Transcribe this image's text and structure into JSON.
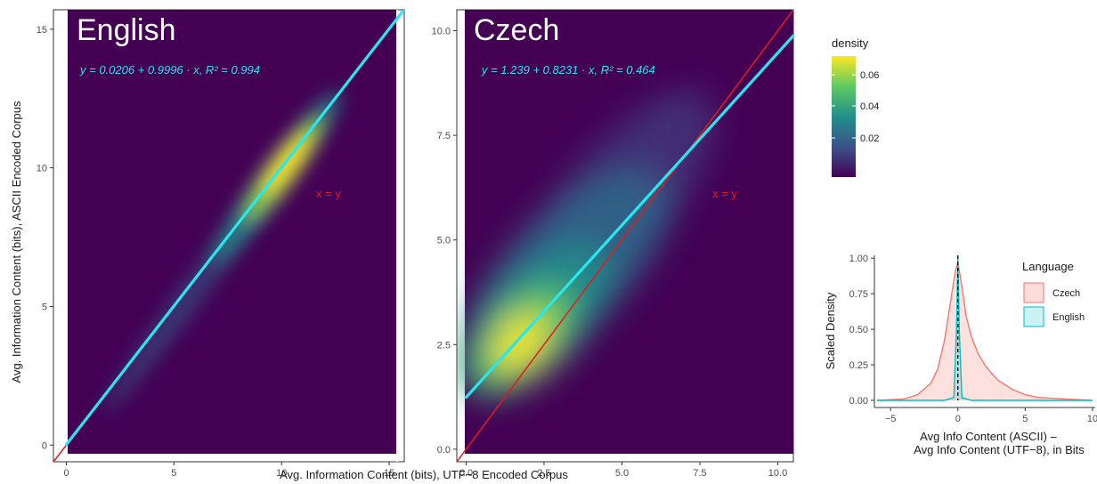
{
  "colors": {
    "density_low": "#440154",
    "density_mid": "#21908c",
    "density_high": "#fde725",
    "fit_line": "#27e7ef",
    "identity_line": "#e41a1c",
    "czech": "#f8766d",
    "english": "#00bfc4"
  },
  "shared": {
    "xlabel": "Avg. Information Content (bits), UTF−8 Encoded Corpus",
    "ylabel": "Avg. Information Content (bits), ASCII Encoded Corpus",
    "identity_label": "x = y"
  },
  "density_legend": {
    "title": "density",
    "ticks": [
      "0.06",
      "0.04",
      "0.02"
    ]
  },
  "chart_data": [
    {
      "type": "heatmap",
      "title": "English",
      "equation": "y = 0.0206 + 0.9996 · x,  R² = 0.994",
      "xlim": [
        -0.6,
        15.7
      ],
      "ylim": [
        -0.6,
        15.7
      ],
      "x_ticks": [
        "0",
        "5",
        "10",
        "15"
      ],
      "y_ticks": [
        "0",
        "5",
        "10",
        "15"
      ],
      "fit": {
        "intercept": 0.0206,
        "slope": 0.9996,
        "r2": 0.994
      },
      "identity": {
        "intercept": 0,
        "slope": 1
      },
      "density_peak": {
        "x": 9.3,
        "y": 9.3
      }
    },
    {
      "type": "heatmap",
      "title": "Czech",
      "equation": "y = 1.239 + 0.8231 · x,  R² = 0.464",
      "xlim": [
        -0.3,
        10.5
      ],
      "ylim": [
        -0.3,
        10.5
      ],
      "x_ticks": [
        "0.0",
        "2.5",
        "5.0",
        "7.5",
        "10.0"
      ],
      "y_ticks": [
        "0.0",
        "2.5",
        "5.0",
        "7.5",
        "10.0"
      ],
      "fit": {
        "intercept": 1.239,
        "slope": 0.8231,
        "r2": 0.464
      },
      "identity": {
        "intercept": 0,
        "slope": 1
      },
      "density_peak": {
        "x": 1.9,
        "y": 1.7
      }
    },
    {
      "type": "area",
      "xlabel": "Avg Info Content (ASCII) –\nAvg Info Content (UTF−8), in Bits",
      "ylabel": "Scaled Density",
      "xlim": [
        -6.2,
        10.2
      ],
      "ylim": [
        -0.05,
        1.02
      ],
      "x_ticks": [
        "−5",
        "0",
        "5",
        "10"
      ],
      "y_ticks": [
        "0.00",
        "0.25",
        "0.50",
        "0.75",
        "1.00"
      ],
      "legend_title": "Language",
      "series": [
        {
          "name": "Czech",
          "x": [
            -6,
            -4,
            -3,
            -2,
            -1.5,
            -1,
            -0.5,
            -0.2,
            0,
            0.3,
            0.6,
            1,
            1.5,
            2,
            2.5,
            3,
            4,
            5,
            6,
            8,
            10
          ],
          "y": [
            0.0,
            0.01,
            0.04,
            0.12,
            0.22,
            0.42,
            0.72,
            0.9,
            0.97,
            0.8,
            0.6,
            0.45,
            0.33,
            0.25,
            0.19,
            0.14,
            0.08,
            0.04,
            0.02,
            0.01,
            0.0
          ]
        },
        {
          "name": "English",
          "x": [
            -6,
            -1,
            -0.3,
            -0.1,
            0,
            0.1,
            0.3,
            1,
            10
          ],
          "y": [
            0.0,
            0.0,
            0.02,
            0.5,
            1.0,
            0.5,
            0.02,
            0.0,
            0.0
          ]
        }
      ]
    }
  ]
}
